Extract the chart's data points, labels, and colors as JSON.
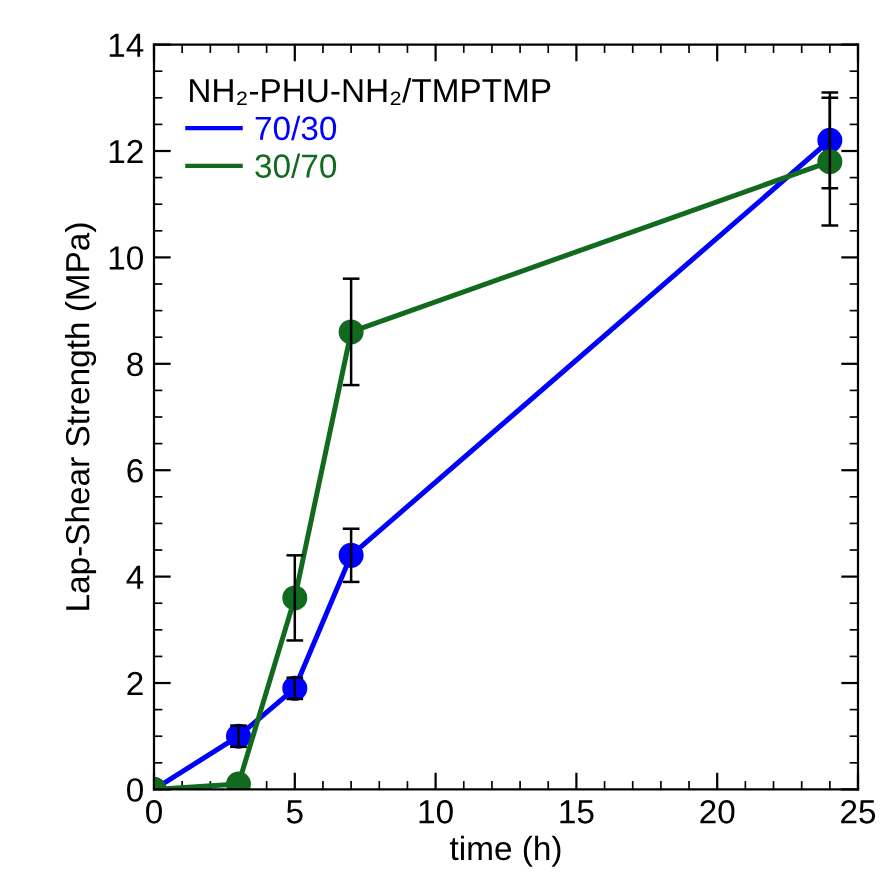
{
  "chart_data": {
    "type": "line",
    "xlabel": "time (h)",
    "ylabel": "Lap-Shear Strength (MPa)",
    "legend_title": "NH₂-PHU-NH₂/TMPTMP",
    "x": [
      0,
      3,
      5,
      7,
      24
    ],
    "series": [
      {
        "name": "70/30",
        "color": "#0000ff",
        "values": [
          0,
          1.0,
          1.9,
          4.4,
          12.2
        ],
        "errors": [
          null,
          0.2,
          0.2,
          0.5,
          0.9
        ]
      },
      {
        "name": "30/70",
        "color": "#116a1e",
        "values": [
          0,
          0.1,
          3.6,
          8.6,
          11.8
        ],
        "errors": [
          null,
          null,
          0.8,
          1.0,
          1.2
        ]
      }
    ],
    "xlim": [
      0,
      25
    ],
    "xticks": [
      0,
      5,
      10,
      15,
      20,
      25
    ],
    "ylim": [
      0,
      14
    ],
    "yticks": [
      0,
      2,
      4,
      6,
      8,
      10,
      12,
      14
    ],
    "marker": "circle",
    "line_style": "solid",
    "legend": "top left",
    "grid": false
  }
}
